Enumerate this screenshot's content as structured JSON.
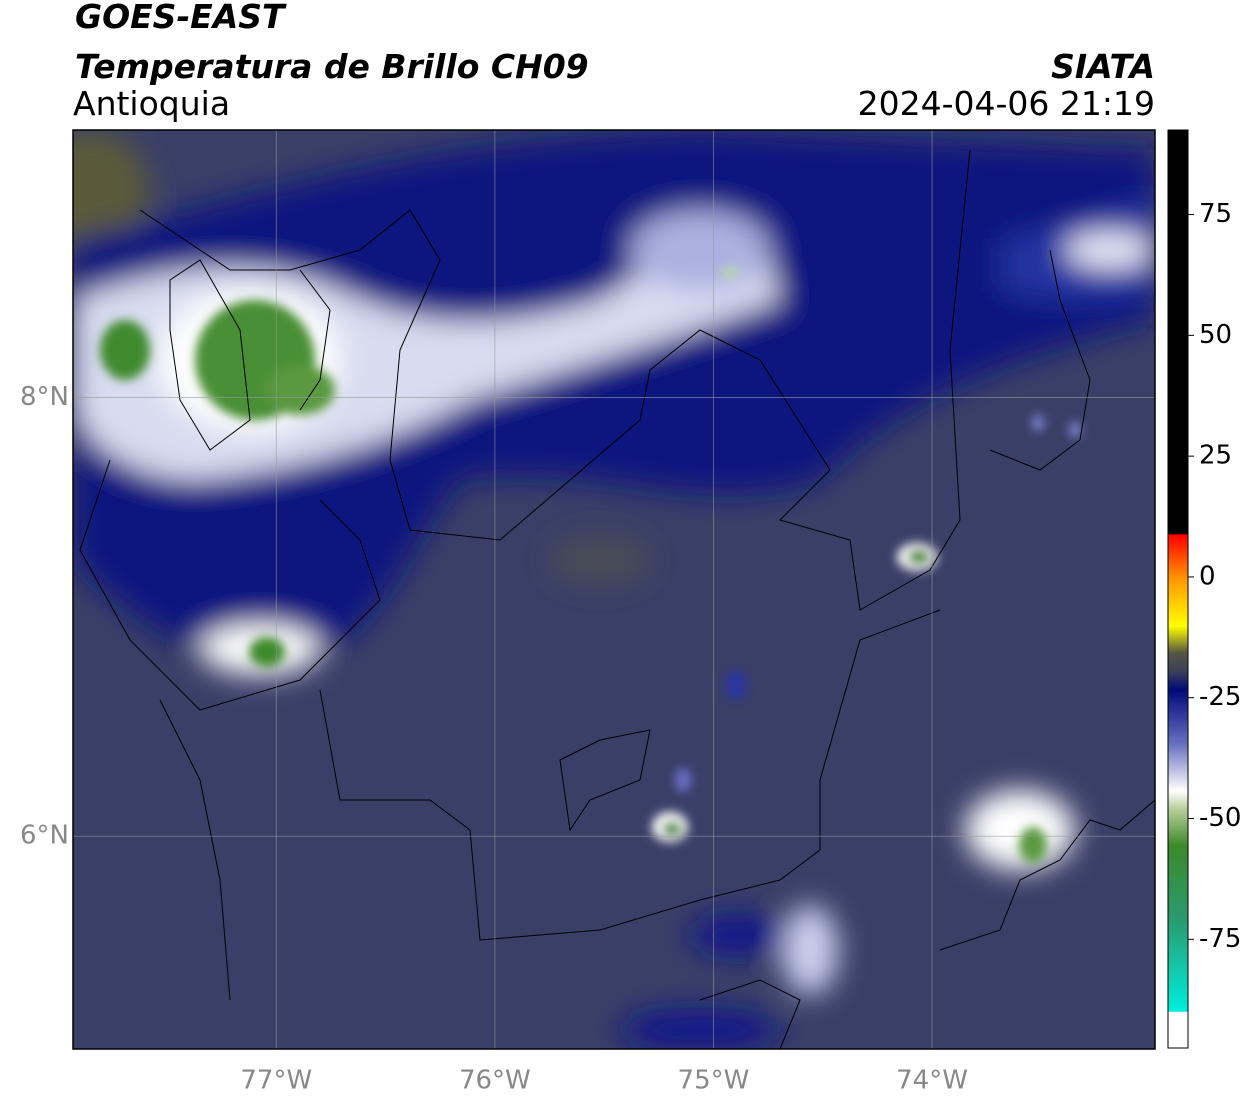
{
  "map": {
    "title": "GOES-EAST",
    "subtitle": "Temperatura de Brillo CH09",
    "region": "Antioquia",
    "source": "SIATA",
    "datetime": "2024-04-06 21:19",
    "lon_range": [
      -77.93,
      -72.98
    ],
    "lat_range": [
      5.03,
      9.22
    ],
    "lon_ticks": [
      {
        "value": -77,
        "label": "77°W"
      },
      {
        "value": -76,
        "label": "76°W"
      },
      {
        "value": -75,
        "label": "75°W"
      },
      {
        "value": -74,
        "label": "74°W"
      }
    ],
    "lat_ticks": [
      {
        "value": 8,
        "label": "8°N"
      },
      {
        "value": 6,
        "label": "6°N"
      }
    ],
    "colorbar": {
      "range": [
        -97.5,
        92.5
      ],
      "ticks": [
        75,
        50,
        25,
        0,
        -25,
        -50,
        -75
      ]
    }
  }
}
